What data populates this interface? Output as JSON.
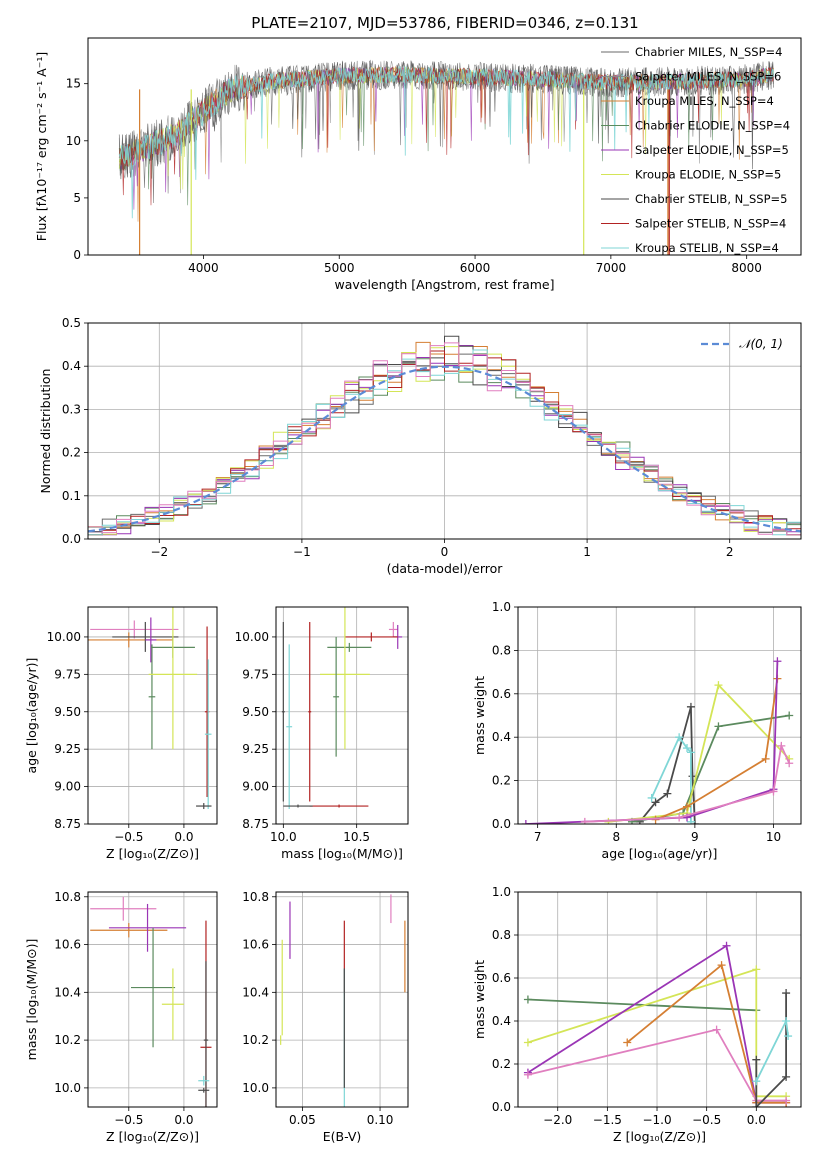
{
  "figure_title": "PLATE=2107, MJD=53786, FIBERID=0346, z=0.131",
  "colors": {
    "chabrier_miles": "#6a6a6a",
    "salpeter_miles": "#8a8a8a",
    "kroupa_miles": "#d57f33",
    "chabrier_elodie": "#5b8a5e",
    "salpeter_elodie": "#9a35b5",
    "kroupa_elodie": "#d4e557",
    "chabrier_stelib": "#4a4a4a",
    "salpeter_stelib": "#b22222",
    "kroupa_stelib": "#7fd6d6",
    "pink": "#e07fbf",
    "normal": "#5b8bd6"
  },
  "chart_data": [
    {
      "id": "spectrum",
      "type": "line",
      "xlabel": "wavelength [Angstrom, rest frame]",
      "ylabel": "Flux [fλ10⁻¹⁷ erg cm⁻² s⁻¹ A⁻¹]",
      "xlim": [
        3150,
        8400
      ],
      "ylim": [
        0,
        19
      ],
      "xticks": [
        "4000",
        "5000",
        "6000",
        "7000",
        "8000"
      ],
      "yticks": [
        "0",
        "5",
        "10",
        "15"
      ],
      "legend_position": "upper-right",
      "legend": [
        {
          "label": "Chabrier MILES, N_SSP=4",
          "color_key": "chabrier_miles"
        },
        {
          "label": "Salpeter MILES, N_SSP=6",
          "color_key": "salpeter_miles"
        },
        {
          "label": "Kroupa MILES, N_SSP=4",
          "color_key": "kroupa_miles"
        },
        {
          "label": "Chabrier ELODIE, N_SSP=4",
          "color_key": "chabrier_elodie"
        },
        {
          "label": "Salpeter ELODIE, N_SSP=5",
          "color_key": "salpeter_elodie"
        },
        {
          "label": "Kroupa ELODIE, N_SSP=5",
          "color_key": "kroupa_elodie"
        },
        {
          "label": "Chabrier STELIB, N_SSP=5",
          "color_key": "chabrier_stelib"
        },
        {
          "label": "Salpeter STELIB, N_SSP=4",
          "color_key": "salpeter_stelib"
        },
        {
          "label": "Kroupa STELIB, N_SSP=4",
          "color_key": "kroupa_stelib"
        }
      ],
      "continuum": [
        [
          3400,
          8.5
        ],
        [
          3600,
          9.5
        ],
        [
          3800,
          10.5
        ],
        [
          4000,
          12.5
        ],
        [
          4200,
          14.5
        ],
        [
          4500,
          15.2
        ],
        [
          5000,
          15.7
        ],
        [
          5500,
          15.8
        ],
        [
          6000,
          15.6
        ],
        [
          6500,
          15.4
        ],
        [
          7000,
          15.1
        ],
        [
          7500,
          15.2
        ],
        [
          8000,
          15.4
        ],
        [
          8200,
          15.8
        ]
      ],
      "cutoffs": [
        {
          "color_key": "kroupa_miles",
          "x": 3530
        },
        {
          "color_key": "kroupa_elodie",
          "x": 3910
        },
        {
          "color_key": "kroupa_elodie",
          "x": 6800
        },
        {
          "color_key": "kroupa_miles",
          "x": 7420
        },
        {
          "color_key": "salpeter_stelib",
          "x": 7430
        }
      ]
    },
    {
      "id": "residuals",
      "type": "histogram",
      "xlabel": "(data-model)/error",
      "ylabel": "Normed distribution",
      "xlim": [
        -2.5,
        2.5
      ],
      "ylim": [
        0,
        0.5
      ],
      "xticks": [
        "−2",
        "−1",
        "0",
        "1",
        "2"
      ],
      "yticks": [
        "0.0",
        "0.1",
        "0.2",
        "0.3",
        "0.4",
        "0.5"
      ],
      "bin_width": 0.1,
      "legend": [
        {
          "label": "𝒩(0, 1)",
          "color_key": "normal",
          "style": "dashed"
        }
      ],
      "grid": true
    },
    {
      "id": "age_vs_Z",
      "type": "errorbar",
      "xlabel": "Z [log₁₀(Z/Z⊙)]",
      "ylabel": "age  [log₁₀(age/yr)]",
      "xlim": [
        -0.87,
        0.3
      ],
      "ylim": [
        8.75,
        10.2
      ],
      "xticks": [
        "−0.5",
        "0.0"
      ],
      "yticks": [
        "8.75",
        "9.00",
        "9.25",
        "9.50",
        "9.75",
        "10.00"
      ],
      "grid": true,
      "points": [
        {
          "x": -0.45,
          "y": 10.05,
          "dx": 0.4,
          "dy": 0.06,
          "color_key": "pink"
        },
        {
          "x": -0.5,
          "y": 9.98,
          "dx": 0.4,
          "dy": 0.05,
          "color_key": "kroupa_miles"
        },
        {
          "x": -0.35,
          "y": 10.0,
          "dx": 0.3,
          "dy": 0.1,
          "color_key": "chabrier_stelib"
        },
        {
          "x": -0.3,
          "y": 9.98,
          "dx": 0.05,
          "dy": 0.15,
          "color_key": "salpeter_elodie"
        },
        {
          "x": -0.1,
          "y": 9.93,
          "dx": 0.2,
          "dy": 0.07,
          "color_key": "chabrier_elodie"
        },
        {
          "x": -0.29,
          "y": 9.6,
          "dx": 0.03,
          "dy": 0.35,
          "color_key": "chabrier_elodie"
        },
        {
          "x": -0.1,
          "y": 9.75,
          "dx": 0.22,
          "dy": 0.5,
          "color_key": "kroupa_elodie"
        },
        {
          "x": 0.21,
          "y": 9.5,
          "dx": 0.02,
          "dy": 0.57,
          "color_key": "salpeter_stelib"
        },
        {
          "x": 0.22,
          "y": 9.35,
          "dx": 0.03,
          "dy": 0.5,
          "color_key": "kroupa_stelib"
        },
        {
          "x": 0.18,
          "y": 8.87,
          "dx": 0.07,
          "dy": 0.02,
          "color_key": "chabrier_stelib"
        }
      ]
    },
    {
      "id": "age_vs_mass",
      "type": "errorbar",
      "xlabel": "mass [log₁₀(M/M⊙)]",
      "ylabel": "",
      "xlim": [
        9.95,
        10.85
      ],
      "ylim": [
        8.75,
        10.2
      ],
      "xticks": [
        "10.0",
        "10.5"
      ],
      "yticks": [
        "8.75",
        "9.00",
        "9.25",
        "9.50",
        "9.75",
        "10.00"
      ],
      "grid": true,
      "points": [
        {
          "x": 10.75,
          "y": 10.05,
          "dx": 0.03,
          "dy": 0.05,
          "color_key": "pink"
        },
        {
          "x": 10.78,
          "y": 10.0,
          "dx": 0.03,
          "dy": 0.08,
          "color_key": "salpeter_elodie"
        },
        {
          "x": 10.6,
          "y": 10.0,
          "dx": 0.18,
          "dy": 0.03,
          "color_key": "salpeter_stelib"
        },
        {
          "x": 10.45,
          "y": 9.93,
          "dx": 0.15,
          "dy": 0.03,
          "color_key": "chabrier_elodie"
        },
        {
          "x": 10.42,
          "y": 9.75,
          "dx": 0.17,
          "dy": 0.5,
          "color_key": "kroupa_elodie"
        },
        {
          "x": 10.36,
          "y": 9.6,
          "dx": 0.02,
          "dy": 0.4,
          "color_key": "chabrier_elodie"
        },
        {
          "x": 10.04,
          "y": 9.4,
          "dx": 0.02,
          "dy": 0.55,
          "color_key": "kroupa_stelib"
        },
        {
          "x": 10.0,
          "y": 9.5,
          "dx": 0.01,
          "dy": 0.6,
          "color_key": "chabrier_stelib"
        },
        {
          "x": 10.38,
          "y": 8.87,
          "dx": 0.2,
          "dy": 0.01,
          "color_key": "salpeter_stelib"
        },
        {
          "x": 10.1,
          "y": 8.87,
          "dx": 0.1,
          "dy": 0.01,
          "color_key": "chabrier_stelib"
        },
        {
          "x": 10.18,
          "y": 9.5,
          "dx": 0.01,
          "dy": 0.6,
          "color_key": "salpeter_stelib"
        }
      ]
    },
    {
      "id": "weight_vs_age",
      "type": "line",
      "xlabel": "age  [log₁₀(age/yr)]",
      "ylabel": "mass weight",
      "xlim": [
        6.75,
        10.35
      ],
      "ylim": [
        0,
        1.0
      ],
      "xticks": [
        "7",
        "8",
        "9",
        "10"
      ],
      "yticks": [
        "0.0",
        "0.2",
        "0.4",
        "0.6",
        "0.8",
        "1.0"
      ],
      "grid": true,
      "series": [
        {
          "color_key": "chabrier_stelib",
          "points": [
            [
              8.3,
              0.01
            ],
            [
              8.5,
              0.1
            ],
            [
              8.65,
              0.14
            ],
            [
              8.95,
              0.54
            ],
            [
              8.97,
              0.22
            ],
            [
              9.0,
              0.0
            ]
          ]
        },
        {
          "color_key": "kroupa_stelib",
          "points": [
            [
              8.45,
              0.12
            ],
            [
              8.8,
              0.4
            ],
            [
              8.9,
              0.35
            ],
            [
              8.95,
              0.33
            ],
            [
              8.95,
              0.01
            ]
          ]
        },
        {
          "color_key": "chabrier_elodie",
          "points": [
            [
              8.2,
              0.01
            ],
            [
              8.85,
              0.05
            ],
            [
              9.3,
              0.45
            ],
            [
              10.2,
              0.5
            ]
          ]
        },
        {
          "color_key": "kroupa_elodie",
          "points": [
            [
              7.9,
              0.01
            ],
            [
              8.9,
              0.05
            ],
            [
              9.3,
              0.64
            ],
            [
              10.2,
              0.3
            ]
          ]
        },
        {
          "color_key": "kroupa_miles",
          "points": [
            [
              8.5,
              0.02
            ],
            [
              8.9,
              0.08
            ],
            [
              9.9,
              0.3
            ],
            [
              10.05,
              0.67
            ]
          ]
        },
        {
          "color_key": "salpeter_elodie",
          "points": [
            [
              6.85,
              0.0
            ],
            [
              8.9,
              0.03
            ],
            [
              10.0,
              0.16
            ],
            [
              10.05,
              0.75
            ]
          ]
        },
        {
          "color_key": "pink",
          "points": [
            [
              7.6,
              0.01
            ],
            [
              8.8,
              0.03
            ],
            [
              10.0,
              0.15
            ],
            [
              10.1,
              0.36
            ],
            [
              10.2,
              0.28
            ]
          ]
        }
      ]
    },
    {
      "id": "mass_vs_Z",
      "type": "errorbar",
      "xlabel": "Z [log₁₀(Z/Z⊙)]",
      "ylabel": "mass [log₁₀(M/M⊙)]",
      "xlim": [
        -0.87,
        0.3
      ],
      "ylim": [
        9.92,
        10.82
      ],
      "xticks": [
        "−0.5",
        "0.0"
      ],
      "yticks": [
        "10.0",
        "10.2",
        "10.4",
        "10.6",
        "10.8"
      ],
      "grid": true,
      "points": [
        {
          "x": -0.55,
          "y": 10.75,
          "dx": 0.3,
          "dy": 0.05,
          "color_key": "pink"
        },
        {
          "x": -0.5,
          "y": 10.66,
          "dx": 0.35,
          "dy": 0.03,
          "color_key": "kroupa_miles"
        },
        {
          "x": -0.33,
          "y": 10.67,
          "dx": 0.35,
          "dy": 0.1,
          "color_key": "salpeter_elodie"
        },
        {
          "x": -0.28,
          "y": 10.42,
          "dx": 0.2,
          "dy": 0.25,
          "color_key": "chabrier_elodie"
        },
        {
          "x": -0.1,
          "y": 10.35,
          "dx": 0.1,
          "dy": 0.15,
          "color_key": "kroupa_elodie"
        },
        {
          "x": 0.2,
          "y": 10.17,
          "dx": 0.05,
          "dy": 0.53,
          "color_key": "salpeter_stelib"
        },
        {
          "x": 0.2,
          "y": 10.2,
          "dx": 0.02,
          "dy": 0.33,
          "color_key": "chabrier_stelib"
        },
        {
          "x": 0.18,
          "y": 10.03,
          "dx": 0.05,
          "dy": 0.02,
          "color_key": "kroupa_stelib"
        },
        {
          "x": 0.18,
          "y": 9.99,
          "dx": 0.05,
          "dy": 0.01,
          "color_key": "chabrier_stelib"
        }
      ]
    },
    {
      "id": "mass_vs_EBV",
      "type": "errorbar",
      "xlabel": "E(B-V)",
      "ylabel": "",
      "xlim": [
        0.033,
        0.118
      ],
      "ylim": [
        9.92,
        10.82
      ],
      "xticks": [
        "0.05",
        "0.10"
      ],
      "yticks": [
        "10.0",
        "10.2",
        "10.4",
        "10.6",
        "10.8"
      ],
      "grid": true,
      "points": [
        {
          "x": 0.037,
          "y": 10.42,
          "dx": 0.0,
          "dy": 0.2,
          "color_key": "kroupa_elodie"
        },
        {
          "x": 0.036,
          "y": 10.2,
          "dx": 0.0,
          "dy": 0.02,
          "color_key": "kroupa_elodie"
        },
        {
          "x": 0.042,
          "y": 10.66,
          "dx": 0.0,
          "dy": 0.12,
          "color_key": "salpeter_elodie"
        },
        {
          "x": 0.077,
          "y": 10.55,
          "dx": 0.0,
          "dy": 0.15,
          "color_key": "salpeter_stelib"
        },
        {
          "x": 0.077,
          "y": 10.2,
          "dx": 0.0,
          "dy": 0.3,
          "color_key": "kroupa_stelib"
        },
        {
          "x": 0.077,
          "y": 10.25,
          "dx": 0.0,
          "dy": 0.25,
          "color_key": "chabrier_stelib"
        },
        {
          "x": 0.107,
          "y": 10.75,
          "dx": 0.0,
          "dy": 0.06,
          "color_key": "pink"
        },
        {
          "x": 0.116,
          "y": 10.55,
          "dx": 0.0,
          "dy": 0.15,
          "color_key": "kroupa_miles"
        }
      ]
    },
    {
      "id": "weight_vs_Z",
      "type": "line",
      "xlabel": "Z [log₁₀(Z/Z⊙)]",
      "ylabel": "mass weight",
      "xlim": [
        -2.4,
        0.45
      ],
      "ylim": [
        0,
        1.0
      ],
      "xticks": [
        "−2.0",
        "−1.5",
        "−1.0",
        "−0.5",
        "0.0"
      ],
      "yticks": [
        "0.0",
        "0.2",
        "0.4",
        "0.6",
        "0.8",
        "1.0"
      ],
      "grid": true,
      "series": [
        {
          "color_key": "chabrier_elodie",
          "points": [
            [
              -2.3,
              0.5
            ],
            [
              0.0,
              0.45
            ]
          ]
        },
        {
          "color_key": "kroupa_elodie",
          "points": [
            [
              -2.3,
              0.3
            ],
            [
              0.0,
              0.64
            ],
            [
              0.0,
              0.05
            ],
            [
              0.3,
              0.05
            ]
          ]
        },
        {
          "color_key": "salpeter_elodie",
          "points": [
            [
              -2.3,
              0.16
            ],
            [
              -0.3,
              0.75
            ],
            [
              0.0,
              0.02
            ],
            [
              0.3,
              0.02
            ]
          ]
        },
        {
          "color_key": "kroupa_miles",
          "points": [
            [
              -1.3,
              0.3
            ],
            [
              -0.35,
              0.66
            ],
            [
              0.0,
              0.02
            ],
            [
              0.3,
              0.02
            ]
          ]
        },
        {
          "color_key": "pink",
          "points": [
            [
              -2.3,
              0.15
            ],
            [
              -0.4,
              0.36
            ],
            [
              0.0,
              0.03
            ],
            [
              0.3,
              0.03
            ]
          ]
        },
        {
          "color_key": "chabrier_stelib",
          "points": [
            [
              0.0,
              0.22
            ],
            [
              0.0,
              0.0
            ],
            [
              0.3,
              0.14
            ],
            [
              0.3,
              0.53
            ]
          ]
        },
        {
          "color_key": "kroupa_stelib",
          "points": [
            [
              0.0,
              0.12
            ],
            [
              0.3,
              0.4
            ],
            [
              0.32,
              0.33
            ]
          ]
        }
      ]
    }
  ]
}
